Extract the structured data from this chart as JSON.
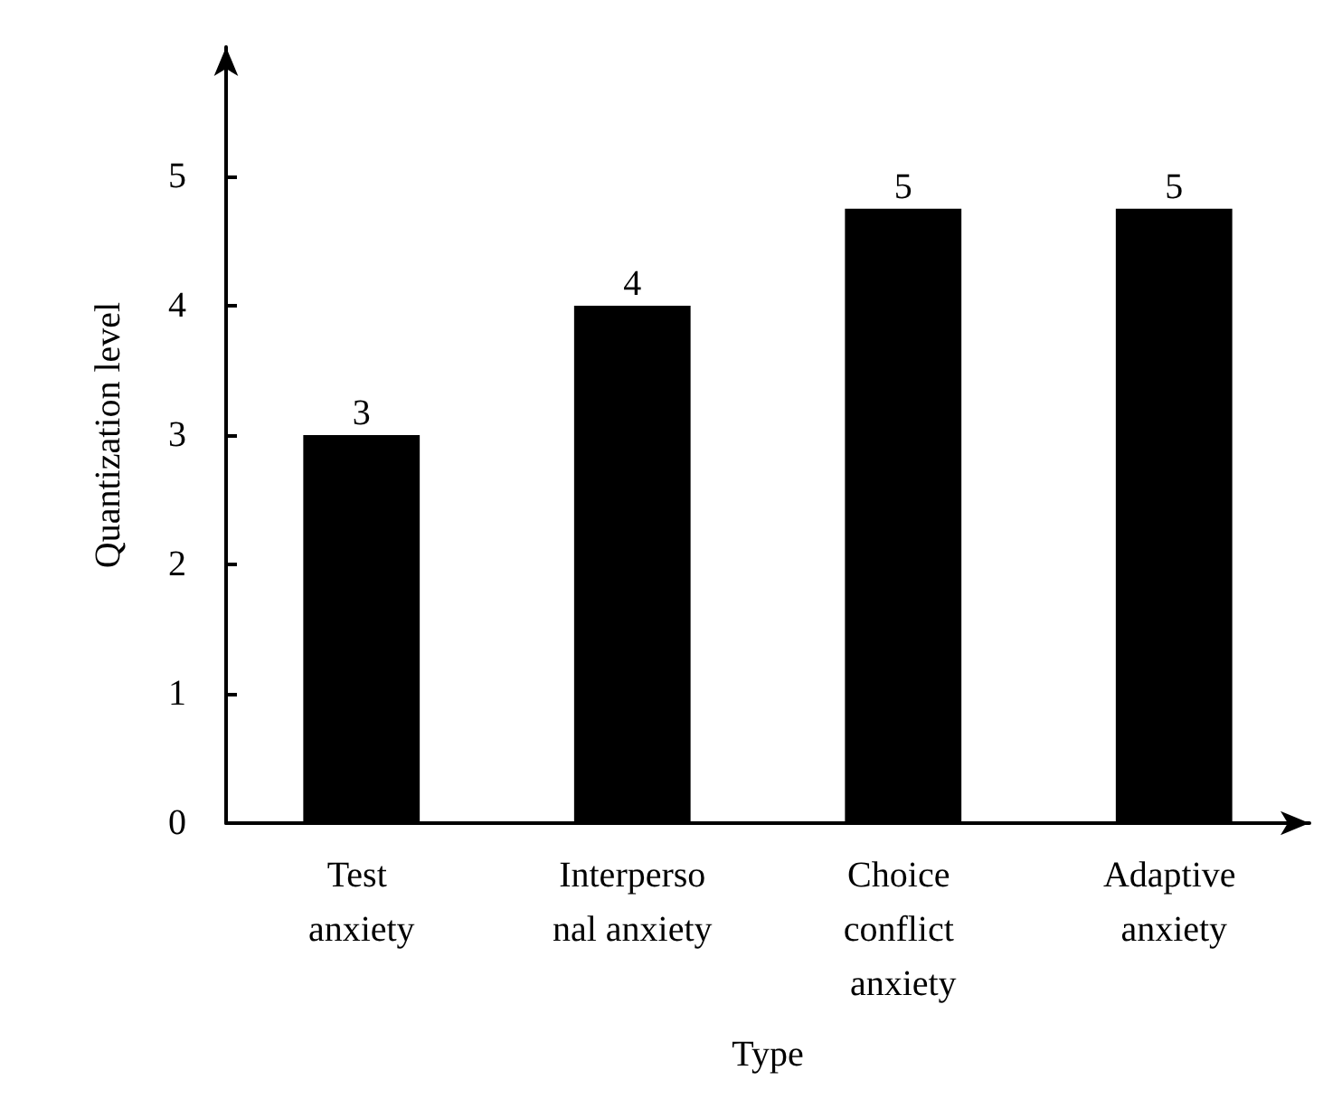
{
  "chart_data": {
    "type": "bar",
    "xlabel": "Type",
    "ylabel": "Quantization level",
    "categories": [
      "Test anxiety",
      "Interpersonal anxiety",
      "Choice conflict anxiety",
      "Adaptive anxiety"
    ],
    "values": [
      3,
      4,
      4.75,
      4.75
    ],
    "value_labels": [
      "3",
      "4",
      "5",
      "5"
    ],
    "color": "#000000",
    "ylim": [
      0,
      6
    ],
    "yticks": [
      0,
      1,
      2,
      3,
      4,
      5
    ],
    "grid": false
  }
}
